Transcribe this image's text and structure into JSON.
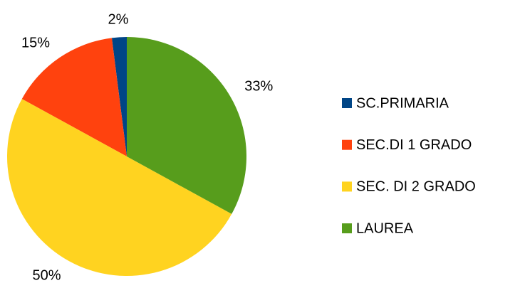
{
  "chart_data": {
    "type": "pie",
    "categories": [
      "SC.PRIMARIA",
      "SEC.DI 1 GRADO",
      "SEC. DI 2 GRADO",
      "LAUREA"
    ],
    "values": [
      2,
      15,
      50,
      33
    ],
    "value_labels": [
      "2%",
      "15%",
      "50%",
      "33%"
    ],
    "colors": [
      "#004586",
      "#ff420e",
      "#ffd320",
      "#579d1c"
    ],
    "direction": "counterclockwise",
    "legend": "right"
  }
}
